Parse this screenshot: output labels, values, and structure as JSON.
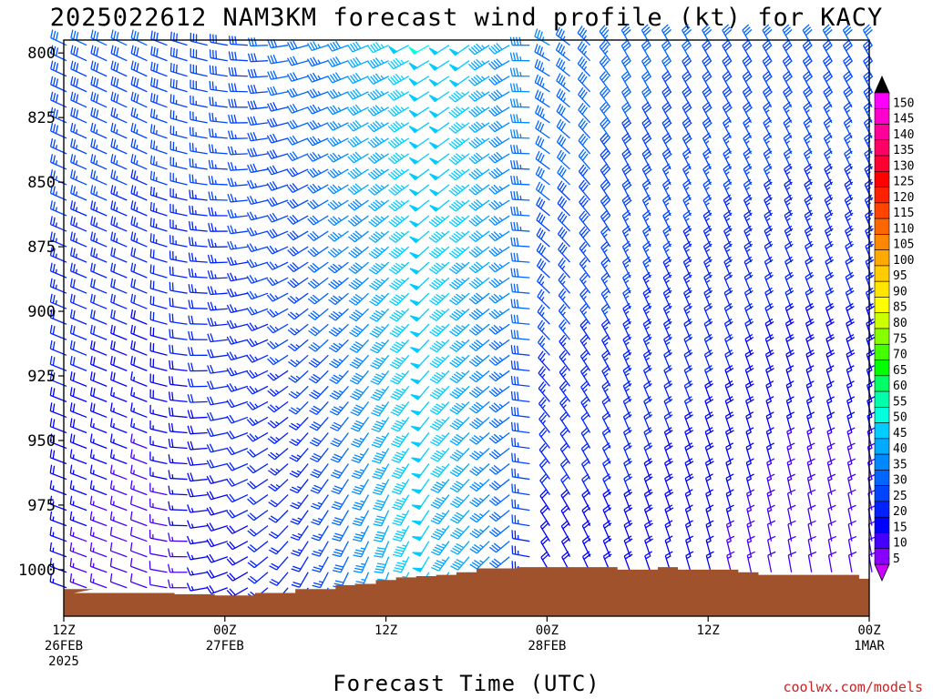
{
  "chart_data": {
    "type": "wind-barb profile (time-height)",
    "title": "2025022612 NAM3KM forecast wind profile (kt) for KACY",
    "xlabel": "Forecast Time (UTC)",
    "credit": "coolwx.com/models",
    "ylabel": "",
    "units": "kt",
    "y_scale": "pressure (hPa), increasing downward",
    "ylim": [
      795,
      1018
    ],
    "y_ticks": [
      "800",
      "825",
      "850",
      "875",
      "900",
      "925",
      "950",
      "975",
      "1000"
    ],
    "x_ticks": [
      {
        "line1": "12Z",
        "line2": "26FEB",
        "line3": "2025",
        "hour": 0
      },
      {
        "line1": "00Z",
        "line2": "27FEB",
        "line3": "",
        "hour": 12
      },
      {
        "line1": "12Z",
        "line2": "",
        "line3": "",
        "hour": 24
      },
      {
        "line1": "00Z",
        "line2": "28FEB",
        "line3": "",
        "hour": 36
      },
      {
        "line1": "12Z",
        "line2": "",
        "line3": "",
        "hour": 48
      },
      {
        "line1": "00Z",
        "line2": "1MAR",
        "line3": "",
        "hour": 60
      }
    ],
    "xlim_hours": [
      0,
      60
    ],
    "time_step_hours": 1.5,
    "levels_hpa": [
      797,
      803,
      809,
      815,
      821,
      827,
      833,
      839,
      845,
      851,
      857,
      863,
      869,
      875,
      881,
      887,
      893,
      899,
      905,
      911,
      917,
      923,
      929,
      935,
      941,
      947,
      953,
      959,
      965,
      971,
      977,
      983,
      989,
      995,
      1001,
      1007
    ],
    "surface_pressure_hpa": [
      1007.5,
      1009,
      1009,
      1009,
      1009,
      1009,
      1009.5,
      1009.5,
      1010,
      1010,
      1009,
      1009,
      1007.5,
      1007.5,
      1006,
      1005.5,
      1004,
      1003,
      1002.5,
      1002,
      1001,
      999.5,
      999.5,
      999,
      999,
      999,
      999,
      999,
      1000,
      1000,
      999,
      1000,
      1000,
      1000,
      1001,
      1002,
      1002,
      1002,
      1002,
      1002,
      1003.5
    ],
    "colorbar": {
      "labels": [
        "150",
        "145",
        "140",
        "135",
        "130",
        "125",
        "120",
        "115",
        "110",
        "105",
        "100",
        "95",
        "90",
        "85",
        "80",
        "75",
        "70",
        "65",
        "60",
        "55",
        "50",
        "45",
        "40",
        "35",
        "30",
        "25",
        "20",
        "15",
        "10",
        "5"
      ],
      "colors": [
        "#ff00ff",
        "#ff00cc",
        "#ff0099",
        "#ff0066",
        "#ff0033",
        "#ff0000",
        "#ff2200",
        "#ff4400",
        "#ff6600",
        "#ff8800",
        "#ffaa00",
        "#ffcc00",
        "#ffe600",
        "#ffff00",
        "#ccff00",
        "#88ff00",
        "#44ff00",
        "#00ff00",
        "#00ff66",
        "#00ffaa",
        "#00ffdd",
        "#00ccff",
        "#00aaff",
        "#0088ff",
        "#0066ff",
        "#0044ff",
        "#0022ff",
        "#0000ff",
        "#4400ff",
        "#8800ff"
      ],
      "arrows": true
    },
    "wind_model": {
      "description": "barbs at each level/time; speed in kt drives color",
      "speed_anchor_times": [
        0,
        6,
        12,
        18,
        21,
        24,
        27,
        30,
        33,
        36,
        42,
        48,
        54,
        60
      ],
      "speed_upper_kt": [
        30,
        30,
        28,
        32,
        38,
        45,
        50,
        48,
        40,
        35,
        32,
        30,
        30,
        30
      ],
      "speed_lower_kt": [
        15,
        10,
        18,
        22,
        30,
        42,
        48,
        40,
        30,
        18,
        18,
        15,
        10,
        10
      ],
      "direction_upper_deg": [
        295,
        295,
        280,
        255,
        250,
        245,
        240,
        235,
        240,
        300,
        330,
        330,
        330,
        330
      ],
      "direction_lower_deg": [
        290,
        290,
        250,
        210,
        205,
        200,
        210,
        220,
        230,
        330,
        340,
        345,
        350,
        350
      ]
    }
  }
}
